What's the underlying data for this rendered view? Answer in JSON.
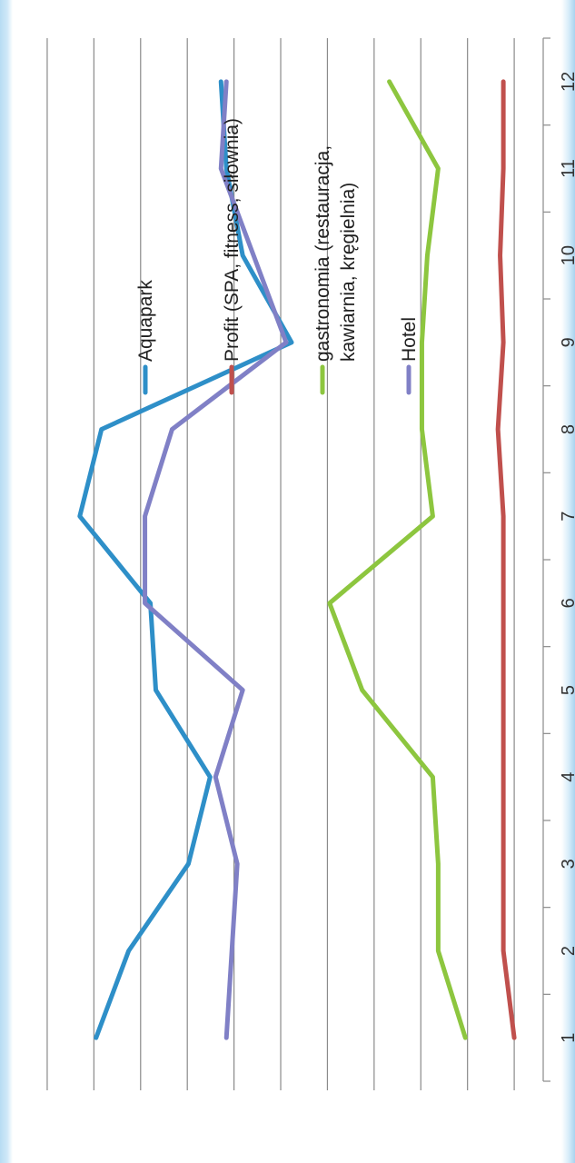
{
  "chart_data": {
    "type": "line",
    "categories": [
      "1",
      "2",
      "3",
      "4",
      "5",
      "6",
      "7",
      "8",
      "9",
      "10",
      "11",
      "12"
    ],
    "grid": true,
    "legend_position": "right",
    "series": [
      {
        "name": "Aquapark",
        "color": "#2e8fc8",
        "values": [
          1.8,
          1.5,
          0.95,
          0.75,
          1.25,
          1.3,
          1.95,
          1.75,
          0.0,
          0.45,
          0.6,
          0.65
        ]
      },
      {
        "name": "Profit (SPA, fitness, siłownia)",
        "color": "#c0504d",
        "values": [
          -2.05,
          -1.95,
          -1.95,
          -1.95,
          -1.95,
          -1.95,
          -1.95,
          -1.9,
          -1.95,
          -1.92,
          -1.95,
          -1.95
        ]
      },
      {
        "name": "gastronomia     (restauracja, kawiarnia, kręgielnia)",
        "color": "#8dc63f",
        "values": [
          -1.6,
          -1.35,
          -1.35,
          -1.3,
          -0.65,
          -0.35,
          -1.3,
          -1.2,
          -1.2,
          -1.25,
          -1.35,
          -0.9
        ]
      },
      {
        "name": "Hotel",
        "color": "#8080c6",
        "values": [
          0.6,
          0.55,
          0.5,
          0.7,
          0.45,
          1.35,
          1.35,
          1.1,
          0.05,
          0.35,
          0.65,
          0.6
        ]
      }
    ]
  }
}
